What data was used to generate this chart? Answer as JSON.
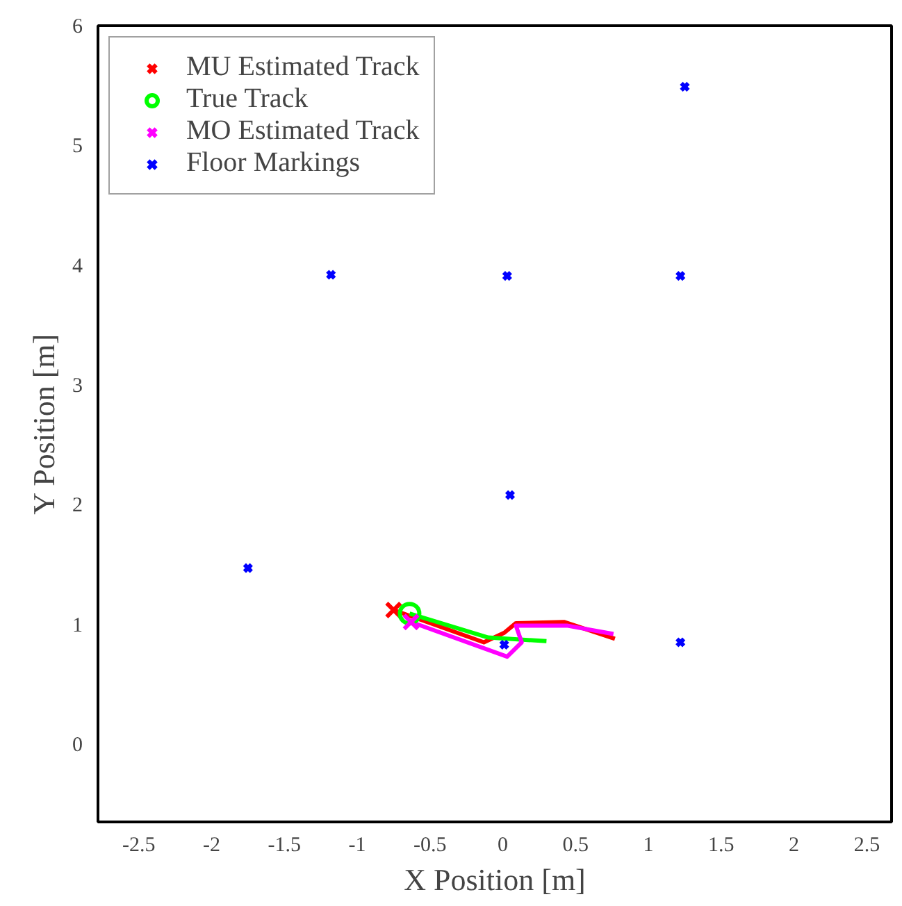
{
  "chart_data": {
    "type": "line",
    "xlabel": "X Position [m]",
    "ylabel": "Y Position [m]",
    "xlim": [
      -2.78,
      2.67
    ],
    "ylim": [
      -0.65,
      6
    ],
    "xticks": [
      -2.5,
      -2,
      -1.5,
      -1,
      -0.5,
      0,
      0.5,
      1,
      1.5,
      2,
      2.5
    ],
    "yticks": [
      0,
      1,
      2,
      3,
      4,
      5,
      6
    ],
    "grid": false,
    "legend": "top left",
    "series": [
      {
        "color": "#ff0000",
        "x": [
          -0.75,
          -0.13,
          0.01,
          0.09,
          0.42,
          0.77
        ],
        "values": [
          1.12,
          0.85,
          0.93,
          1.01,
          1.02,
          0.88
        ]
      },
      {
        "color": "#00ff00",
        "x": [
          -0.64,
          -0.1,
          0.3
        ],
        "values": [
          1.09,
          0.89,
          0.86
        ]
      },
      {
        "color": "#ff00ff",
        "x": [
          -0.63,
          0.03,
          0.13,
          0.09,
          0.44,
          0.76
        ],
        "values": [
          1.02,
          0.73,
          0.85,
          0.99,
          0.99,
          0.92
        ]
      },
      {
        "name": "MU Estimated Track",
        "type": "scatter",
        "color": "#ff0000",
        "marker": "cross",
        "x": [
          -0.75
        ],
        "values": [
          1.12
        ]
      },
      {
        "name": "True Track",
        "type": "scatter",
        "color": "#00ff00",
        "marker": "circle",
        "x": [
          -0.64
        ],
        "values": [
          1.09
        ]
      },
      {
        "name": "MO Estimated Track",
        "type": "scatter",
        "color": "#ff00ff",
        "marker": "cross",
        "x": [
          -0.63
        ],
        "values": [
          1.02
        ]
      },
      {
        "name": "Floor Markings",
        "type": "scatter",
        "color": "#0000ff",
        "marker": "cross",
        "x": [
          1.25,
          -1.18,
          0.03,
          1.22,
          0.05,
          -1.75,
          1.22,
          0.01
        ],
        "values": [
          5.49,
          3.92,
          3.91,
          3.91,
          2.08,
          1.47,
          0.85,
          0.83
        ]
      }
    ]
  }
}
